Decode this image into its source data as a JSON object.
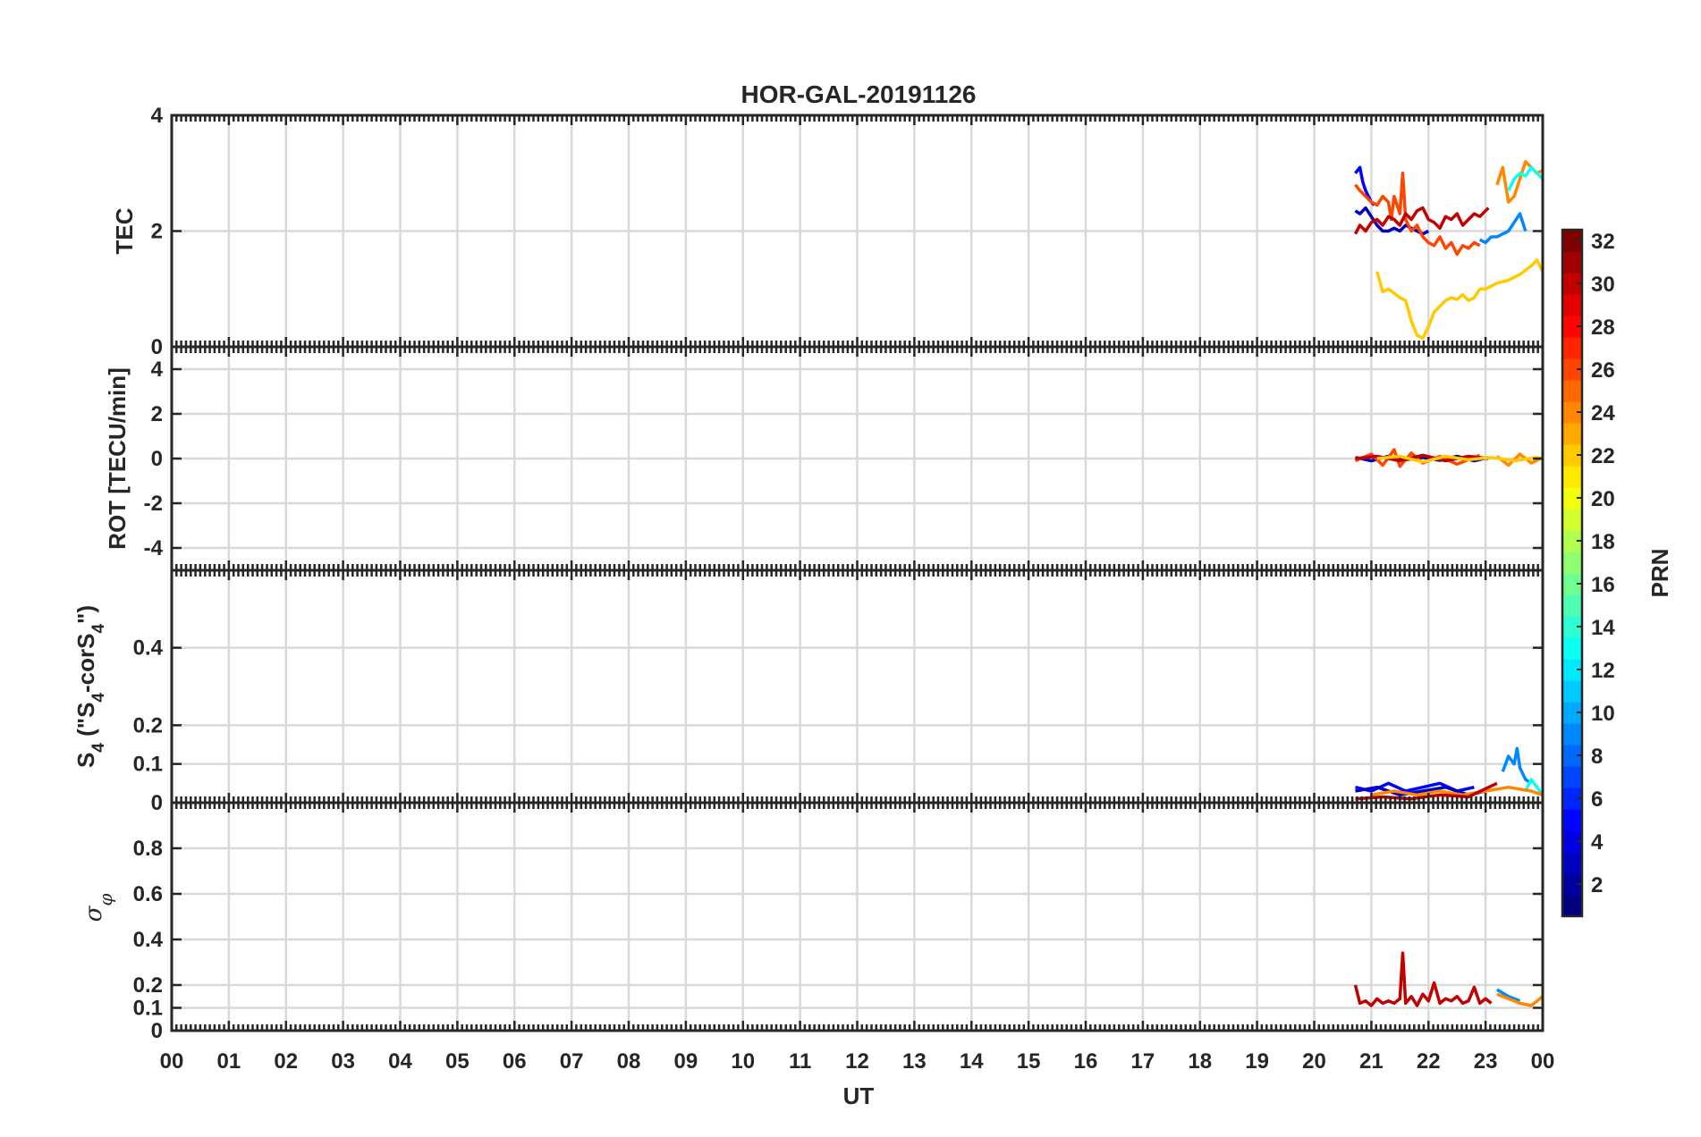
{
  "title": "HOR-GAL-20191126",
  "xlabel": "UT",
  "x_tick_labels": [
    "00",
    "01",
    "02",
    "03",
    "04",
    "05",
    "06",
    "07",
    "08",
    "09",
    "10",
    "11",
    "12",
    "13",
    "14",
    "15",
    "16",
    "17",
    "18",
    "19",
    "20",
    "21",
    "22",
    "23",
    "00"
  ],
  "colors": {
    "axis": "#262626",
    "grid": "#d9d9d9",
    "background": "#ffffff"
  },
  "colorbar": {
    "label": "PRN",
    "range": [
      1,
      32
    ],
    "colormap": "jet",
    "tick_labels": [
      "2",
      "4",
      "6",
      "8",
      "10",
      "12",
      "14",
      "16",
      "18",
      "20",
      "22",
      "24",
      "26",
      "28",
      "30",
      "32"
    ]
  },
  "chart_data": [
    {
      "type": "line",
      "panel": "TEC",
      "ylabel": "TEC",
      "ylim": [
        0,
        4
      ],
      "yticks": [
        0,
        2,
        4
      ],
      "ytick_labels": [
        "0",
        "2",
        "4"
      ],
      "xlim": [
        0,
        24
      ],
      "grid": true,
      "series": [
        {
          "prn": 3,
          "x": [
            20.72,
            20.8,
            20.9,
            21.0,
            21.1,
            21.2,
            21.3,
            21.4,
            21.5,
            21.6,
            21.7,
            21.8,
            21.9,
            22.0
          ],
          "y": [
            2.35,
            2.3,
            2.4,
            2.25,
            2.1,
            2.0,
            2.0,
            2.05,
            2.0,
            2.1,
            2.05,
            2.0,
            1.95,
            2.0
          ]
        },
        {
          "prn": 5,
          "x": [
            20.72,
            20.8,
            20.85,
            20.9,
            20.95,
            21.0,
            21.05
          ],
          "y": [
            3.0,
            3.1,
            2.85,
            2.7,
            2.6,
            2.5,
            2.45
          ]
        },
        {
          "prn": 26,
          "x": [
            20.72,
            20.8,
            20.9,
            21.0,
            21.1,
            21.2,
            21.3,
            21.35,
            21.4,
            21.5,
            21.55,
            21.6,
            21.7,
            21.8,
            21.9,
            22.0,
            22.1,
            22.2,
            22.3,
            22.4,
            22.5,
            22.6,
            22.7,
            22.8,
            22.9
          ],
          "y": [
            2.8,
            2.7,
            2.6,
            2.5,
            2.45,
            2.6,
            2.5,
            2.2,
            2.6,
            2.3,
            3.0,
            2.2,
            2.0,
            2.1,
            1.9,
            1.8,
            1.75,
            1.9,
            1.7,
            1.8,
            1.6,
            1.75,
            1.7,
            1.8,
            1.75
          ]
        },
        {
          "prn": 30,
          "x": [
            20.72,
            20.8,
            20.9,
            21.0,
            21.1,
            21.2,
            21.3,
            21.4,
            21.5,
            21.6,
            21.7,
            21.8,
            21.9,
            22.0,
            22.1,
            22.2,
            22.3,
            22.4,
            22.5,
            22.6,
            22.7,
            22.8,
            22.9,
            23.0,
            23.05
          ],
          "y": [
            1.95,
            2.1,
            2.0,
            2.15,
            2.2,
            2.1,
            2.25,
            2.2,
            2.1,
            2.3,
            2.2,
            2.35,
            2.4,
            2.2,
            2.15,
            2.05,
            2.25,
            2.2,
            2.3,
            2.1,
            2.2,
            2.3,
            2.25,
            2.35,
            2.4
          ]
        },
        {
          "prn": 24,
          "x": [
            23.2,
            23.3,
            23.4,
            23.5,
            23.6,
            23.7,
            23.8,
            23.9,
            24.0
          ],
          "y": [
            2.8,
            3.1,
            2.5,
            2.6,
            2.9,
            3.2,
            3.1,
            3.0,
            3.05
          ]
        },
        {
          "prn": 13,
          "x": [
            23.4,
            23.5,
            23.6,
            23.7,
            23.8,
            23.9,
            24.0
          ],
          "y": [
            2.7,
            2.9,
            3.0,
            2.95,
            3.1,
            3.0,
            2.9
          ]
        },
        {
          "prn": 9,
          "x": [
            22.9,
            23.0,
            23.1,
            23.2,
            23.3,
            23.4,
            23.5,
            23.6,
            23.7
          ],
          "y": [
            1.85,
            1.8,
            1.9,
            1.9,
            1.95,
            2.0,
            2.15,
            2.3,
            2.0
          ]
        },
        {
          "prn": 22,
          "x": [
            21.1,
            21.2,
            21.3,
            21.5,
            21.6,
            21.7,
            21.8,
            21.9,
            22.0,
            22.1,
            22.2,
            22.3,
            22.4,
            22.5,
            22.6,
            22.7,
            22.8,
            22.9,
            23.0,
            23.2,
            23.4,
            23.6,
            23.8,
            23.9,
            24.0
          ],
          "y": [
            1.3,
            0.95,
            1.0,
            0.85,
            0.8,
            0.45,
            0.2,
            0.15,
            0.35,
            0.6,
            0.7,
            0.8,
            0.85,
            0.82,
            0.9,
            0.8,
            0.85,
            1.0,
            1.0,
            1.1,
            1.15,
            1.25,
            1.4,
            1.5,
            1.3
          ]
        }
      ]
    },
    {
      "type": "line",
      "panel": "ROT",
      "ylabel": "ROT [TECU/min]",
      "ylim": [
        -5,
        5
      ],
      "yticks": [
        -4,
        -2,
        0,
        2,
        4
      ],
      "ytick_labels": [
        "-4",
        "-2",
        "0",
        "2",
        "4"
      ],
      "xlim": [
        0,
        24
      ],
      "grid": true,
      "series": [
        {
          "prn": 3,
          "x": [
            20.72,
            21.0,
            21.3,
            21.6,
            21.9,
            22.2,
            22.5,
            22.8,
            23.05
          ],
          "y": [
            0.05,
            -0.1,
            0.1,
            -0.05,
            0.05,
            -0.08,
            0.1,
            -0.1,
            0.05
          ]
        },
        {
          "prn": 26,
          "x": [
            20.72,
            21.0,
            21.2,
            21.4,
            21.5,
            21.7,
            21.9,
            22.2,
            22.5,
            22.9
          ],
          "y": [
            -0.1,
            0.2,
            -0.3,
            0.4,
            -0.35,
            0.25,
            -0.2,
            0.1,
            -0.25,
            0.15
          ]
        },
        {
          "prn": 24,
          "x": [
            23.2,
            23.4,
            23.6,
            23.8,
            24.0
          ],
          "y": [
            0.1,
            -0.3,
            0.2,
            -0.2,
            0.05
          ]
        },
        {
          "prn": 30,
          "x": [
            20.72,
            21.1,
            21.5,
            21.9,
            22.3,
            22.7,
            23.05
          ],
          "y": [
            0.0,
            0.1,
            -0.1,
            0.15,
            -0.1,
            0.1,
            0.0
          ]
        },
        {
          "prn": 22,
          "x": [
            21.1,
            21.5,
            21.9,
            22.3,
            22.7,
            23.1,
            23.5,
            23.9,
            24.0
          ],
          "y": [
            0.0,
            0.1,
            -0.15,
            0.1,
            -0.05,
            0.05,
            -0.1,
            0.05,
            0.0
          ]
        }
      ]
    },
    {
      "type": "line",
      "panel": "S4",
      "ylabel": "S4 (\"S4-corS4\")",
      "ylim": [
        0,
        0.6
      ],
      "yticks": [
        0,
        0.1,
        0.2,
        0.4
      ],
      "ytick_labels": [
        "0",
        "0.1",
        "0.2",
        "0.4"
      ],
      "xlim": [
        0,
        24
      ],
      "grid": true,
      "series": [
        {
          "prn": 5,
          "x": [
            20.72,
            21.0,
            21.3,
            21.6,
            21.9,
            22.2,
            22.5,
            22.8
          ],
          "y": [
            0.04,
            0.03,
            0.05,
            0.03,
            0.04,
            0.05,
            0.03,
            0.04
          ]
        },
        {
          "prn": 3,
          "x": [
            20.72,
            21.1,
            21.5,
            21.9,
            22.3,
            22.7,
            23.0
          ],
          "y": [
            0.03,
            0.04,
            0.02,
            0.03,
            0.04,
            0.02,
            0.03
          ]
        },
        {
          "prn": 9,
          "x": [
            23.3,
            23.4,
            23.5,
            23.55,
            23.6,
            23.7,
            23.8
          ],
          "y": [
            0.08,
            0.12,
            0.1,
            0.14,
            0.09,
            0.06,
            0.05
          ]
        },
        {
          "prn": 13,
          "x": [
            23.7,
            23.8,
            23.9,
            24.0
          ],
          "y": [
            0.03,
            0.06,
            0.04,
            0.02
          ]
        },
        {
          "prn": 24,
          "x": [
            21.0,
            21.4,
            21.8,
            22.2,
            22.6,
            23.0,
            23.4,
            23.8,
            24.0
          ],
          "y": [
            0.02,
            0.03,
            0.02,
            0.03,
            0.02,
            0.03,
            0.04,
            0.03,
            0.02
          ]
        },
        {
          "prn": 30,
          "x": [
            20.72,
            21.2,
            21.7,
            22.2,
            22.7,
            23.2
          ],
          "y": [
            0.01,
            0.015,
            0.01,
            0.02,
            0.015,
            0.05
          ]
        }
      ]
    },
    {
      "type": "line",
      "panel": "sigma_phi",
      "ylabel": "σ φ",
      "ylim": [
        0,
        1
      ],
      "yticks": [
        0,
        0.1,
        0.2,
        0.4,
        0.6,
        0.8
      ],
      "ytick_labels": [
        "0",
        "0.1",
        "0.2",
        "0.4",
        "0.6",
        "0.8"
      ],
      "xlim": [
        0,
        24
      ],
      "grid": true,
      "series": [
        {
          "prn": 30,
          "x": [
            20.72,
            20.8,
            20.9,
            21.0,
            21.1,
            21.2,
            21.3,
            21.4,
            21.5,
            21.55,
            21.6,
            21.7,
            21.8,
            21.9,
            22.0,
            22.1,
            22.2,
            22.3,
            22.4,
            22.5,
            22.6,
            22.7,
            22.8,
            22.9,
            23.0,
            23.1
          ],
          "y": [
            0.2,
            0.12,
            0.13,
            0.11,
            0.14,
            0.12,
            0.13,
            0.12,
            0.14,
            0.34,
            0.12,
            0.15,
            0.11,
            0.16,
            0.13,
            0.21,
            0.12,
            0.14,
            0.13,
            0.15,
            0.12,
            0.13,
            0.19,
            0.12,
            0.14,
            0.12
          ]
        },
        {
          "prn": 9,
          "x": [
            23.2,
            23.4,
            23.6
          ],
          "y": [
            0.18,
            0.15,
            0.13
          ]
        },
        {
          "prn": 24,
          "x": [
            23.2,
            23.4,
            23.6,
            23.8,
            24.0
          ],
          "y": [
            0.16,
            0.14,
            0.12,
            0.11,
            0.15
          ]
        }
      ]
    }
  ]
}
